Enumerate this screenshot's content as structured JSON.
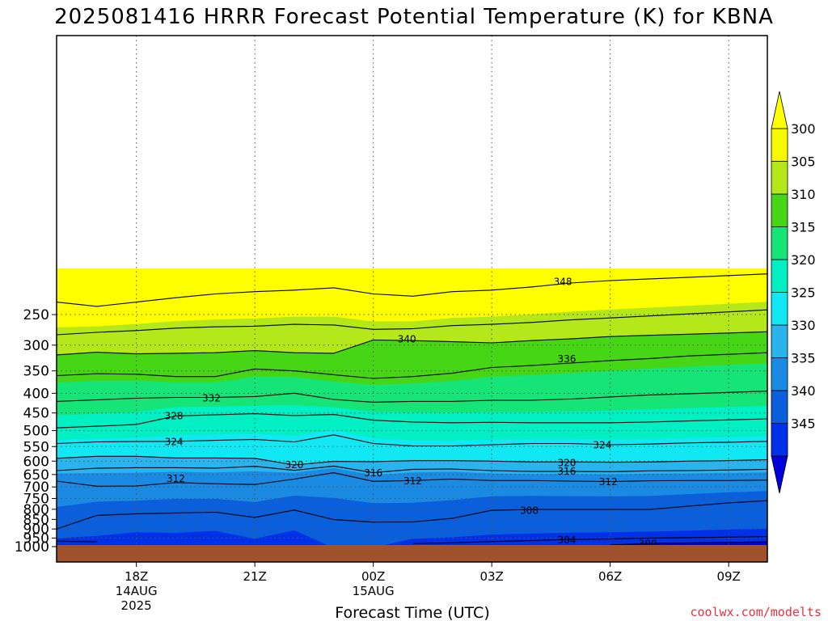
{
  "chart_data": {
    "type": "heatmap",
    "title": "2025081416 HRRR Forecast Potential Temperature (K) for KBNA",
    "xlabel": "Forecast Time (UTC)",
    "ylabel": "",
    "credit": "coolwx.com/modelts",
    "x_ticks": [
      {
        "hour": 2,
        "label": "18Z",
        "sub": [
          "14AUG",
          "2025"
        ]
      },
      {
        "hour": 5,
        "label": "21Z",
        "sub": []
      },
      {
        "hour": 8,
        "label": "00Z",
        "sub": [
          "15AUG"
        ]
      },
      {
        "hour": 11,
        "label": "03Z",
        "sub": []
      },
      {
        "hour": 14,
        "label": "06Z",
        "sub": []
      },
      {
        "hour": 17,
        "label": "09Z",
        "sub": []
      }
    ],
    "xlim": [
      -0.02,
      17.98
    ],
    "y_axis": {
      "scale": "log",
      "units": "hPa",
      "range": [
        1000,
        200
      ],
      "ticks": [
        250,
        300,
        350,
        400,
        450,
        500,
        550,
        600,
        650,
        700,
        750,
        800,
        850,
        900,
        950,
        1000
      ]
    },
    "x_gridlines": [
      2,
      5,
      8,
      11,
      14,
      17
    ],
    "colorbar": {
      "levels": [
        300,
        305,
        310,
        315,
        320,
        325,
        330,
        335,
        340,
        345
      ],
      "colors": [
        "#0030e8",
        "#0a60dc",
        "#1a8ae2",
        "#2ab4ee",
        "#12e8f4",
        "#00f0c4",
        "#16e476",
        "#46d616",
        "#b4e81a",
        "#f8f800"
      ],
      "over_color": "#ffff00",
      "under_color": "#0000dc"
    },
    "ground_color": "#a0522d",
    "contour_levels": [
      300,
      304,
      308,
      312,
      316,
      320,
      324,
      328,
      332,
      336,
      340,
      344,
      348
    ],
    "contour_labels": [
      {
        "text": "348",
        "hour": 12.8,
        "p": 205
      },
      {
        "text": "340",
        "hour": 8.85,
        "p": 289
      },
      {
        "text": "336",
        "hour": 12.9,
        "p": 325
      },
      {
        "text": "332",
        "hour": 3.9,
        "p": 411
      },
      {
        "text": "328",
        "hour": 2.95,
        "p": 457
      },
      {
        "text": "324",
        "hour": 2.95,
        "p": 533
      },
      {
        "text": "324",
        "hour": 13.8,
        "p": 544
      },
      {
        "text": "320",
        "hour": 6.0,
        "p": 612
      },
      {
        "text": "320",
        "hour": 12.9,
        "p": 605
      },
      {
        "text": "316",
        "hour": 8.0,
        "p": 643
      },
      {
        "text": "316",
        "hour": 12.9,
        "p": 637
      },
      {
        "text": "312",
        "hour": 3.0,
        "p": 665
      },
      {
        "text": "312",
        "hour": 9.0,
        "p": 674
      },
      {
        "text": "312",
        "hour": 13.95,
        "p": 678
      },
      {
        "text": "308",
        "hour": 11.95,
        "p": 804
      },
      {
        "text": "304",
        "hour": 12.9,
        "p": 959
      },
      {
        "text": "300",
        "hour": 14.95,
        "p": 982
      }
    ],
    "profile_series": [
      {
        "hour": -0.02,
        "p_at_theta": [
          null,
          968,
          900,
          676,
          635,
          590,
          540,
          492,
          420,
          360,
          318,
          282,
          232
        ]
      },
      {
        "hour": 1.0,
        "p_at_theta": [
          null,
          972,
          830,
          697,
          626,
          583,
          535,
          487,
          416,
          356,
          313,
          278,
          238
        ]
      },
      {
        "hour": 2.0,
        "p_at_theta": [
          null,
          null,
          822,
          696,
          624,
          583,
          534,
          482,
          412,
          357,
          316,
          275,
          232
        ]
      },
      {
        "hour": 3.0,
        "p_at_theta": [
          null,
          null,
          818,
          682,
          624,
          589,
          533,
          458,
          410,
          362,
          315,
          271,
          226
        ]
      },
      {
        "hour": 4.0,
        "p_at_theta": [
          null,
          null,
          814,
          687,
          626,
          589,
          530,
          455,
          410,
          362,
          314,
          269,
          221
        ]
      },
      {
        "hour": 5.0,
        "p_at_theta": [
          null,
          null,
          840,
          690,
          619,
          590,
          527,
          452,
          408,
          346,
          310,
          268,
          218
        ]
      },
      {
        "hour": 6.0,
        "p_at_theta": [
          null,
          null,
          804,
          668,
          634,
          614,
          535,
          457,
          400,
          350,
          314,
          265,
          216
        ]
      },
      {
        "hour": 7.0,
        "p_at_theta": [
          null,
          null,
          851,
          643,
          618,
          601,
          513,
          454,
          415,
          358,
          315,
          266,
          213
        ]
      },
      {
        "hour": 8.0,
        "p_at_theta": [
          null,
          null,
          864,
          677,
          643,
          602,
          540,
          470,
          422,
          366,
          291,
          273,
          221
        ]
      },
      {
        "hour": 9.0,
        "p_at_theta": [
          null,
          982,
          863,
          674,
          630,
          598,
          548,
          475,
          420,
          362,
          292,
          272,
          224
        ]
      },
      {
        "hour": 10.0,
        "p_at_theta": [
          null,
          978,
          845,
          668,
          629,
          598,
          548,
          477,
          420,
          355,
          294,
          267,
          218
        ]
      },
      {
        "hour": 11.0,
        "p_at_theta": [
          null,
          970,
          805,
          674,
          635,
          600,
          544,
          476,
          417,
          343,
          296,
          265,
          216
        ]
      },
      {
        "hour": 12.0,
        "p_at_theta": [
          null,
          965,
          801,
          674,
          638,
          603,
          540,
          477,
          417,
          339,
          292,
          262,
          212
        ]
      },
      {
        "hour": 13.0,
        "p_at_theta": [
          null,
          958,
          801,
          676,
          638,
          603,
          540,
          477,
          414,
          334,
          289,
          258,
          207
        ]
      },
      {
        "hour": 14.0,
        "p_at_theta": [
          990,
          955,
          801,
          678,
          639,
          604,
          544,
          477,
          409,
          329,
          285,
          255,
          204
        ]
      },
      {
        "hour": 15.0,
        "p_at_theta": [
          982,
          950,
          801,
          675,
          636,
          603,
          542,
          475,
          404,
          325,
          283,
          252,
          202
        ]
      },
      {
        "hour": 16.0,
        "p_at_theta": [
          978,
          948,
          785,
          674,
          635,
          600,
          538,
          472,
          401,
          320,
          281,
          249,
          200
        ]
      },
      {
        "hour": 17.0,
        "p_at_theta": [
          975,
          945,
          770,
          674,
          633,
          598,
          536,
          469,
          398,
          317,
          279,
          246,
          198
        ]
      },
      {
        "hour": 17.98,
        "p_at_theta": [
          972,
          942,
          760,
          672,
          630,
          595,
          533,
          466,
          395,
          314,
          277,
          243,
          196
        ]
      }
    ]
  }
}
